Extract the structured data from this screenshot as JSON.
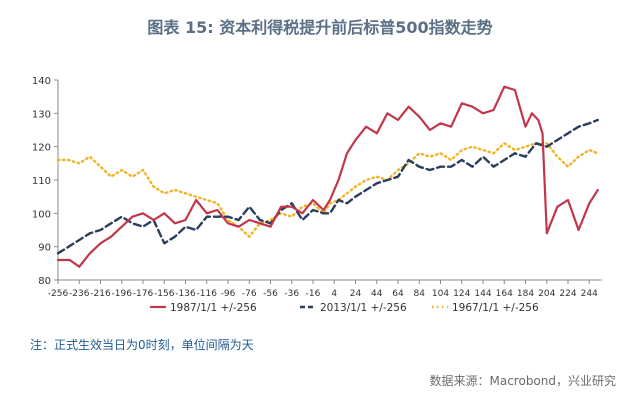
{
  "figure": {
    "title": "图表 15: 资本利得税提升前后标普500指数走势",
    "note": "注：正式生效当日为0时刻，单位间隔为天",
    "source": "数据来源：Macrobond，兴业研究"
  },
  "colors": {
    "series_1987": "#c0374b",
    "series_2013": "#2c3e5f",
    "series_1967": "#f0b429",
    "axis": "#888888",
    "title": "#5b6f86",
    "note": "#1f5a96"
  },
  "chart_data": {
    "type": "line",
    "xlim": [
      -256,
      256
    ],
    "ylim": [
      80,
      140
    ],
    "grid": false,
    "legend_position": "bottom",
    "x_ticks": [
      "-256",
      "-236",
      "-216",
      "-196",
      "-176",
      "-156",
      "-136",
      "-116",
      "-96",
      "-76",
      "-56",
      "-36",
      "-16",
      "4",
      "24",
      "44",
      "64",
      "84",
      "104",
      "124",
      "144",
      "164",
      "184",
      "204",
      "224",
      "244"
    ],
    "y_ticks": [
      "80",
      "90",
      "100",
      "110",
      "120",
      "130",
      "140"
    ],
    "series": [
      {
        "name": "1987/1/1 +/-256",
        "style": "solid",
        "x": [
          -256,
          -245,
          -236,
          -226,
          -216,
          -206,
          -196,
          -186,
          -176,
          -166,
          -156,
          -146,
          -136,
          -126,
          -116,
          -106,
          -96,
          -86,
          -76,
          -66,
          -56,
          -46,
          -36,
          -26,
          -16,
          -6,
          0,
          8,
          16,
          24,
          34,
          44,
          54,
          64,
          74,
          84,
          94,
          104,
          114,
          124,
          134,
          144,
          154,
          164,
          174,
          184,
          190,
          196,
          200,
          204,
          214,
          224,
          234,
          244,
          252
        ],
        "y": [
          86,
          86,
          84,
          88,
          91,
          93,
          96,
          99,
          100,
          98,
          100,
          97,
          98,
          104,
          100,
          101,
          97,
          96,
          98,
          97,
          96,
          102,
          102,
          100,
          104,
          101,
          104,
          110,
          118,
          122,
          126,
          124,
          130,
          128,
          132,
          129,
          125,
          127,
          126,
          133,
          132,
          130,
          131,
          138,
          137,
          126,
          130,
          128,
          124,
          94,
          102,
          104,
          95,
          103,
          107
        ]
      },
      {
        "name": "2013/1/1 +/-256",
        "style": "dashed",
        "x": [
          -256,
          -246,
          -236,
          -226,
          -216,
          -206,
          -196,
          -186,
          -176,
          -166,
          -156,
          -146,
          -136,
          -126,
          -116,
          -106,
          -96,
          -86,
          -76,
          -66,
          -56,
          -46,
          -36,
          -26,
          -16,
          -6,
          0,
          8,
          16,
          24,
          34,
          44,
          54,
          64,
          74,
          84,
          94,
          104,
          114,
          124,
          134,
          144,
          154,
          164,
          174,
          184,
          194,
          204,
          214,
          224,
          234,
          244,
          252
        ],
        "y": [
          88,
          90,
          92,
          94,
          95,
          97,
          99,
          97,
          96,
          98,
          91,
          93,
          96,
          95,
          99,
          99,
          99,
          98,
          102,
          98,
          97,
          101,
          103,
          98,
          101,
          100,
          100,
          104,
          103,
          105,
          107,
          109,
          110,
          111,
          116,
          114,
          113,
          114,
          114,
          116,
          114,
          117,
          114,
          116,
          118,
          117,
          121,
          120,
          122,
          124,
          126,
          127,
          128
        ]
      },
      {
        "name": "1967/1/1 +/-256",
        "style": "dotted",
        "x": [
          -256,
          -246,
          -236,
          -226,
          -216,
          -206,
          -196,
          -186,
          -176,
          -166,
          -156,
          -146,
          -136,
          -126,
          -116,
          -106,
          -96,
          -86,
          -76,
          -66,
          -56,
          -46,
          -36,
          -26,
          -16,
          -6,
          0,
          8,
          16,
          24,
          34,
          44,
          54,
          64,
          74,
          84,
          94,
          104,
          114,
          124,
          134,
          144,
          154,
          164,
          174,
          184,
          194,
          204,
          214,
          224,
          234,
          244,
          252
        ],
        "y": [
          116,
          116,
          115,
          117,
          114,
          111,
          113,
          111,
          113,
          108,
          106,
          107,
          106,
          105,
          104,
          103,
          98,
          96,
          93,
          97,
          98,
          100,
          99,
          102,
          103,
          100,
          103,
          104,
          106,
          108,
          110,
          111,
          110,
          113,
          115,
          118,
          117,
          118,
          116,
          119,
          120,
          119,
          118,
          121,
          119,
          120,
          121,
          121,
          117,
          114,
          117,
          119,
          118
        ]
      }
    ]
  }
}
